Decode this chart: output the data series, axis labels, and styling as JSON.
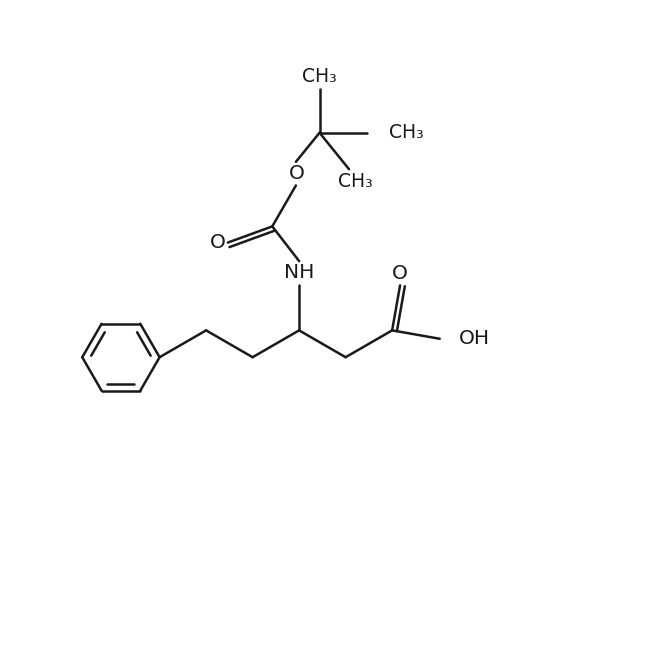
{
  "bg_color": "#ffffff",
  "line_color": "#1a1a1a",
  "line_width": 1.8,
  "font_family": "DejaVu Sans",
  "label_fontsize": 13.5,
  "fig_width": 6.5,
  "fig_height": 6.5,
  "dpi": 100,
  "xlim": [
    0,
    12
  ],
  "ylim": [
    0,
    12
  ]
}
